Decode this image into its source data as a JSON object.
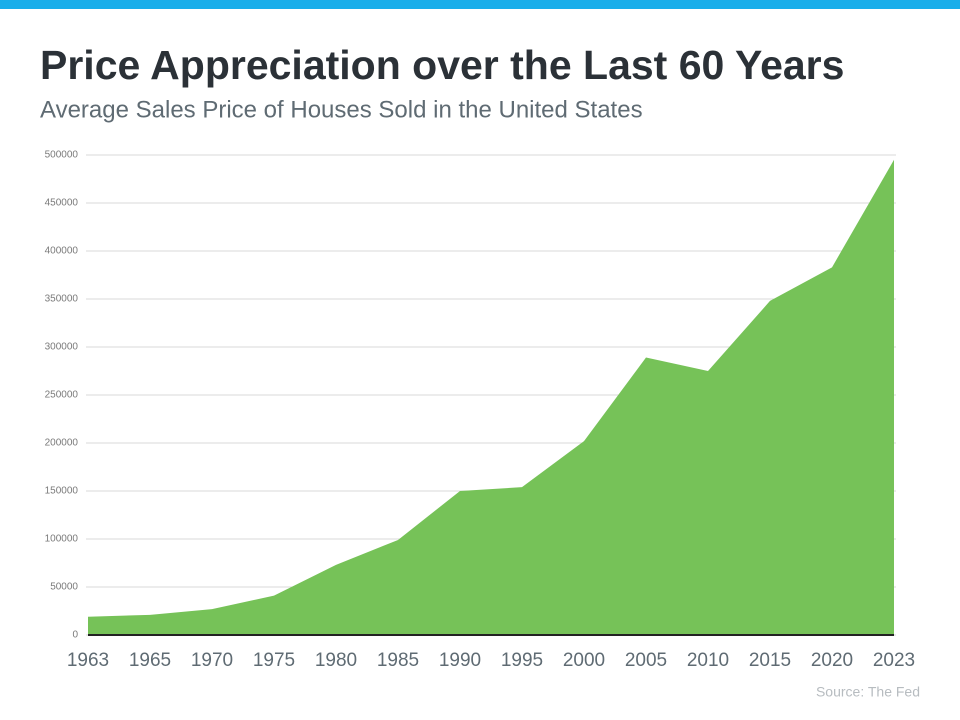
{
  "chart_data": {
    "type": "area",
    "title": "Price Appreciation over the Last 60 Years",
    "subtitle": "Average Sales Price of Houses Sold in the United States",
    "source": "Source: The Fed",
    "categories": [
      "1963",
      "1965",
      "1970",
      "1975",
      "1980",
      "1985",
      "1990",
      "1995",
      "2000",
      "2005",
      "2010",
      "2015",
      "2020",
      "2023"
    ],
    "values": [
      19000,
      21000,
      27000,
      41000,
      73000,
      99000,
      150000,
      154000,
      202000,
      289000,
      275000,
      348000,
      383000,
      495000
    ],
    "color": "#76c258",
    "ylim": [
      0,
      500000
    ],
    "yticks": [
      0,
      50000,
      100000,
      150000,
      200000,
      250000,
      300000,
      350000,
      400000,
      450000,
      500000
    ],
    "grid": true
  }
}
